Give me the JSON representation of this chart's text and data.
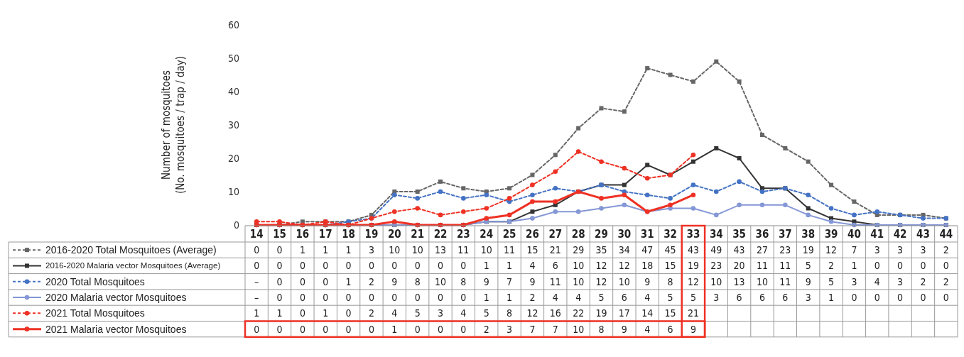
{
  "chart_data": {
    "type": "line",
    "ylabel": "Number of mosquitoes\n(No. mosquitoes / trap / day)",
    "categories": [
      "14",
      "15",
      "16",
      "17",
      "18",
      "19",
      "20",
      "21",
      "22",
      "23",
      "24",
      "25",
      "26",
      "27",
      "28",
      "29",
      "30",
      "31",
      "32",
      "33",
      "34",
      "35",
      "36",
      "37",
      "38",
      "39",
      "40",
      "41",
      "42",
      "43",
      "44"
    ],
    "ylim": [
      0,
      60
    ],
    "yticks": [
      0,
      10,
      20,
      30,
      40,
      50,
      60
    ],
    "grid": false,
    "legend": "bottom",
    "data_labels": true,
    "series": [
      {
        "name": "2016-2020 Total Mosquitoes (Average)",
        "color": "#666666",
        "marker": "square",
        "line_style": "dashed",
        "values": [
          0,
          0,
          1,
          1,
          1,
          3,
          10,
          10,
          13,
          11,
          10,
          11,
          15,
          21,
          29,
          35,
          34,
          47,
          45,
          43,
          49,
          43,
          27,
          23,
          19,
          12,
          7,
          3,
          3,
          3,
          2
        ]
      },
      {
        "name": "2016-2020 Malaria vector Mosquitoes (Average)",
        "color": "#333333",
        "marker": "square",
        "line_style": "solid",
        "values": [
          0,
          0,
          0,
          0,
          0,
          0,
          0,
          0,
          0,
          0,
          1,
          1,
          4,
          6,
          10,
          12,
          12,
          18,
          15,
          19,
          23,
          20,
          11,
          11,
          5,
          2,
          1,
          0,
          0,
          0,
          0
        ]
      },
      {
        "name": "2020 Total Mosquitoes",
        "color": "#4472c4",
        "marker": "circle",
        "line_style": "dashed",
        "values": [
          null,
          0,
          0,
          0,
          1,
          2,
          9,
          8,
          10,
          8,
          9,
          7,
          9,
          11,
          10,
          12,
          10,
          9,
          8,
          12,
          10,
          13,
          10,
          11,
          9,
          5,
          3,
          4,
          3,
          2,
          2
        ],
        "value_labels": [
          "–",
          "0",
          "0",
          "0",
          "1",
          "2",
          "9",
          "8",
          "10",
          "8",
          "9",
          "7",
          "9",
          "11",
          "10",
          "12",
          "10",
          "9",
          "8",
          "12",
          "10",
          "13",
          "10",
          "11",
          "9",
          "5",
          "3",
          "4",
          "3",
          "2",
          "2"
        ]
      },
      {
        "name": "2020 Malaria vector Mosquitoes",
        "color": "#8497d6",
        "marker": "circle",
        "line_style": "solid",
        "values": [
          null,
          0,
          0,
          0,
          0,
          0,
          0,
          0,
          0,
          0,
          1,
          1,
          2,
          4,
          4,
          5,
          6,
          4,
          5,
          5,
          3,
          6,
          6,
          6,
          3,
          1,
          0,
          0,
          0,
          0,
          0
        ],
        "value_labels": [
          "–",
          "0",
          "0",
          "0",
          "0",
          "0",
          "0",
          "0",
          "0",
          "0",
          "1",
          "1",
          "2",
          "4",
          "4",
          "5",
          "6",
          "4",
          "5",
          "5",
          "3",
          "6",
          "6",
          "6",
          "3",
          "1",
          "0",
          "0",
          "0",
          "0",
          "0"
        ]
      },
      {
        "name": "2021 Total Mosquitoes",
        "color": "#ee3124",
        "marker": "circle",
        "line_style": "dashed",
        "values": [
          1,
          1,
          0,
          1,
          0,
          2,
          4,
          5,
          3,
          4,
          5,
          8,
          12,
          16,
          22,
          19,
          17,
          14,
          15,
          21,
          null,
          null,
          null,
          null,
          null,
          null,
          null,
          null,
          null,
          null,
          null
        ]
      },
      {
        "name": "2021 Malaria vector Mosquitoes",
        "color": "#ee3124",
        "marker": "circle",
        "line_style": "solid",
        "values": [
          0,
          0,
          0,
          0,
          0,
          0,
          1,
          0,
          0,
          0,
          2,
          3,
          7,
          7,
          10,
          8,
          9,
          4,
          6,
          9,
          null,
          null,
          null,
          null,
          null,
          null,
          null,
          null,
          null,
          null,
          null
        ]
      }
    ]
  }
}
